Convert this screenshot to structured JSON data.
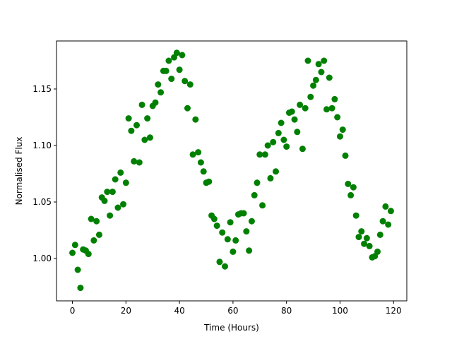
{
  "chart_data": {
    "type": "scatter",
    "x_label": "Time (Hours)",
    "y_label": "Normalised Flux",
    "color": "#008000",
    "x": [
      0,
      1,
      2,
      3,
      4,
      5,
      6,
      7,
      8,
      9,
      10,
      11,
      12,
      13,
      14,
      15,
      16,
      17,
      18,
      19,
      20,
      21,
      22,
      23,
      24,
      25,
      26,
      27,
      28,
      29,
      30,
      31,
      32,
      33,
      34,
      35,
      36,
      37,
      38,
      39,
      40,
      41,
      42,
      43,
      44,
      45,
      46,
      47,
      48,
      49,
      50,
      51,
      52,
      53,
      54,
      55,
      56,
      57,
      58,
      59,
      60,
      61,
      62,
      63,
      64,
      65,
      66,
      67,
      68,
      69,
      70,
      71,
      72,
      73,
      74,
      75,
      76,
      77,
      78,
      79,
      80,
      81,
      82,
      83,
      84,
      85,
      86,
      87,
      88,
      89,
      90,
      91,
      92,
      93,
      94,
      95,
      96,
      97,
      98,
      99,
      100,
      101,
      102,
      103,
      104,
      105,
      106,
      107,
      108,
      109,
      110,
      111,
      112,
      113,
      114,
      115,
      116,
      117,
      118,
      119
    ],
    "values": [
      1.005,
      1.012,
      0.99,
      0.974,
      1.008,
      1.007,
      1.004,
      1.035,
      1.016,
      1.033,
      1.021,
      1.054,
      1.051,
      1.059,
      1.038,
      1.059,
      1.07,
      1.045,
      1.076,
      1.048,
      1.067,
      1.124,
      1.113,
      1.086,
      1.118,
      1.085,
      1.136,
      1.105,
      1.124,
      1.107,
      1.135,
      1.138,
      1.154,
      1.147,
      1.166,
      1.166,
      1.175,
      1.159,
      1.178,
      1.182,
      1.167,
      1.18,
      1.157,
      1.133,
      1.154,
      1.092,
      1.123,
      1.094,
      1.085,
      1.077,
      1.067,
      1.068,
      1.038,
      1.035,
      1.029,
      0.997,
      1.023,
      0.993,
      1.017,
      1.032,
      1.006,
      1.016,
      1.039,
      1.04,
      1.04,
      1.024,
      1.007,
      1.033,
      1.056,
      1.067,
      1.092,
      1.047,
      1.092,
      1.1,
      1.071,
      1.103,
      1.077,
      1.111,
      1.12,
      1.105,
      1.099,
      1.129,
      1.13,
      1.123,
      1.112,
      1.136,
      1.097,
      1.133,
      1.175,
      1.143,
      1.153,
      1.158,
      1.172,
      1.165,
      1.175,
      1.132,
      1.16,
      1.133,
      1.141,
      1.125,
      1.108,
      1.114,
      1.091,
      1.066,
      1.056,
      1.063,
      1.038,
      1.019,
      1.024,
      1.013,
      1.018,
      1.011,
      1.001,
      1.002,
      1.006,
      1.021,
      1.033,
      1.046,
      1.03,
      1.042
    ],
    "xlim": [
      -5.95,
      124.95
    ],
    "ylim": [
      0.9625,
      1.1925
    ],
    "xticks": [
      0,
      20,
      40,
      60,
      80,
      100,
      120
    ],
    "yticks": [
      {
        "value": 1.0,
        "label": "1.00"
      },
      {
        "value": 1.05,
        "label": "1.05"
      },
      {
        "value": 1.1,
        "label": "1.10"
      },
      {
        "value": 1.15,
        "label": "1.15"
      }
    ]
  }
}
